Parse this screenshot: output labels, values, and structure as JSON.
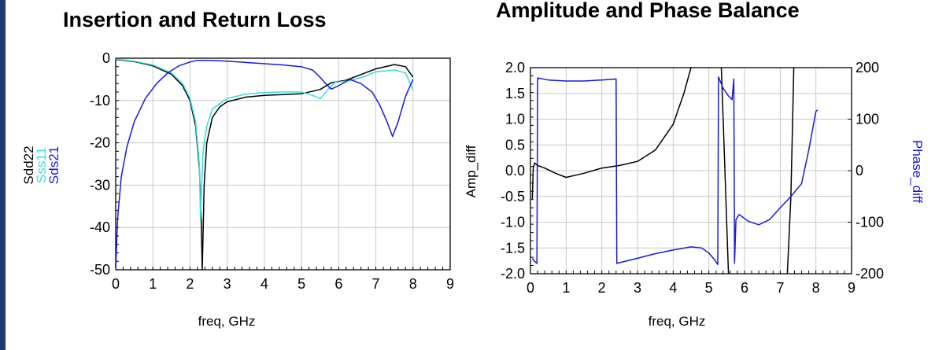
{
  "colors": {
    "black": "#000000",
    "cyan": "#33dddd",
    "blue": "#1a1ad6",
    "grid": "#c8c8c8",
    "frame": "#1f3a6e"
  },
  "chart_data": [
    {
      "type": "line",
      "title": "Insertion and Return Loss",
      "xlabel": "freq, GHz",
      "ylabel_stack": [
        {
          "text": "Sdd22",
          "color": "#000000"
        },
        {
          "text": "Sss11",
          "color": "#33dddd"
        },
        {
          "text": "Sds21",
          "color": "#1a1ad6"
        }
      ],
      "xlim": [
        0,
        9
      ],
      "ylim": [
        -50,
        0
      ],
      "x_ticks": [
        0,
        1,
        2,
        3,
        4,
        5,
        6,
        7,
        8,
        9
      ],
      "y_ticks": [
        0,
        -10,
        -20,
        -30,
        -40,
        -50
      ],
      "x_tick_labels": [
        "0",
        "1",
        "2",
        "3",
        "4",
        "5",
        "6",
        "7",
        "8",
        "9"
      ],
      "y_tick_labels": [
        "0",
        "-10",
        "-20",
        "-30",
        "-40",
        "-50"
      ],
      "grid": true,
      "series": [
        {
          "name": "Sdd22",
          "color": "#000000",
          "points": [
            [
              0,
              -0.3
            ],
            [
              0.5,
              -0.8
            ],
            [
              1.0,
              -1.8
            ],
            [
              1.5,
              -3.8
            ],
            [
              1.8,
              -6.5
            ],
            [
              2.0,
              -10
            ],
            [
              2.15,
              -16
            ],
            [
              2.25,
              -26
            ],
            [
              2.3,
              -38
            ],
            [
              2.33,
              -50
            ],
            [
              2.38,
              -30
            ],
            [
              2.45,
              -20
            ],
            [
              2.6,
              -14
            ],
            [
              2.8,
              -11.5
            ],
            [
              3.0,
              -10.3
            ],
            [
              3.5,
              -9.2
            ],
            [
              4.0,
              -8.8
            ],
            [
              4.5,
              -8.6
            ],
            [
              5.0,
              -8.4
            ],
            [
              5.5,
              -7.4
            ],
            [
              5.8,
              -5.8
            ],
            [
              6.2,
              -5.2
            ],
            [
              6.5,
              -4.2
            ],
            [
              7.0,
              -2.5
            ],
            [
              7.5,
              -1.5
            ],
            [
              7.8,
              -2.0
            ],
            [
              8.0,
              -4.5
            ]
          ]
        },
        {
          "name": "Sss11",
          "color": "#33dddd",
          "points": [
            [
              0,
              -0.2
            ],
            [
              0.5,
              -0.7
            ],
            [
              1.0,
              -1.6
            ],
            [
              1.5,
              -3.5
            ],
            [
              1.8,
              -6.0
            ],
            [
              2.0,
              -9.5
            ],
            [
              2.15,
              -15
            ],
            [
              2.25,
              -25
            ],
            [
              2.28,
              -38
            ],
            [
              2.35,
              -22
            ],
            [
              2.45,
              -16
            ],
            [
              2.6,
              -12
            ],
            [
              3.0,
              -9.5
            ],
            [
              3.5,
              -8.5
            ],
            [
              4.0,
              -8.1
            ],
            [
              4.5,
              -8.0
            ],
            [
              5.0,
              -8.0
            ],
            [
              5.3,
              -8.8
            ],
            [
              5.5,
              -9.6
            ],
            [
              5.7,
              -7.5
            ],
            [
              5.9,
              -5.7
            ],
            [
              6.3,
              -5.3
            ],
            [
              6.7,
              -4.3
            ],
            [
              7.0,
              -3.2
            ],
            [
              7.5,
              -2.8
            ],
            [
              7.8,
              -3.5
            ],
            [
              8.0,
              -7.5
            ]
          ]
        },
        {
          "name": "Sds21",
          "color": "#1a1ad6",
          "points": [
            [
              0,
              -50
            ],
            [
              0.05,
              -38
            ],
            [
              0.15,
              -28
            ],
            [
              0.3,
              -21
            ],
            [
              0.5,
              -15
            ],
            [
              0.8,
              -9.5
            ],
            [
              1.1,
              -6
            ],
            [
              1.4,
              -3.5
            ],
            [
              1.7,
              -1.8
            ],
            [
              2.0,
              -0.9
            ],
            [
              2.2,
              -0.5
            ],
            [
              2.5,
              -0.5
            ],
            [
              3.0,
              -0.7
            ],
            [
              3.5,
              -1.0
            ],
            [
              4.0,
              -1.3
            ],
            [
              4.5,
              -1.6
            ],
            [
              5.0,
              -2.0
            ],
            [
              5.3,
              -2.8
            ],
            [
              5.5,
              -4.5
            ],
            [
              5.65,
              -6.0
            ],
            [
              5.8,
              -7.3
            ],
            [
              6.0,
              -6.5
            ],
            [
              6.3,
              -5.0
            ],
            [
              6.6,
              -6.0
            ],
            [
              6.9,
              -8.0
            ],
            [
              7.1,
              -11
            ],
            [
              7.3,
              -15
            ],
            [
              7.45,
              -18.5
            ],
            [
              7.6,
              -15
            ],
            [
              7.8,
              -9
            ],
            [
              8.0,
              -5.0
            ]
          ]
        }
      ]
    },
    {
      "type": "line",
      "title": "Amplitude and Phase Balance",
      "xlabel": "freq, GHz",
      "ylabel": "Amp_diff",
      "ylabel_right": "Phase_diff",
      "xlim": [
        0,
        9
      ],
      "ylim": [
        -2.0,
        2.0
      ],
      "ylim_right": [
        -200,
        200
      ],
      "x_ticks": [
        0,
        1,
        2,
        3,
        4,
        5,
        6,
        7,
        8,
        9
      ],
      "y_ticks": [
        2.0,
        1.5,
        1.0,
        0.5,
        0.0,
        -0.5,
        -1.0,
        -1.5,
        -2.0
      ],
      "y_ticks_right": [
        200,
        100,
        0,
        -100,
        -200
      ],
      "x_tick_labels": [
        "0",
        "1",
        "2",
        "3",
        "4",
        "5",
        "6",
        "7",
        "8",
        "9"
      ],
      "y_tick_labels": [
        "2.0",
        "1.5",
        "1.0",
        "0.5",
        "0.0",
        "-0.5",
        "-1.0",
        "-1.5",
        "-2.0"
      ],
      "y_tick_labels_right": [
        "200",
        "100",
        "0",
        "-100",
        "-200"
      ],
      "grid": true,
      "series": [
        {
          "name": "Amp_diff",
          "color": "#000000",
          "axis": "left",
          "points": [
            [
              0.05,
              -0.55
            ],
            [
              0.08,
              0.05
            ],
            [
              0.12,
              0.15
            ],
            [
              0.2,
              0.1
            ],
            [
              0.4,
              0.05
            ],
            [
              0.7,
              -0.05
            ],
            [
              1.0,
              -0.13
            ],
            [
              1.5,
              -0.05
            ],
            [
              2.0,
              0.05
            ],
            [
              2.5,
              0.1
            ],
            [
              3.0,
              0.18
            ],
            [
              3.5,
              0.4
            ],
            [
              4.0,
              0.9
            ],
            [
              4.3,
              1.5
            ],
            [
              4.5,
              2.0
            ],
            null,
            [
              5.35,
              2.0
            ],
            [
              5.45,
              0.0
            ],
            [
              5.5,
              -1.0
            ],
            [
              5.55,
              -2.0
            ],
            null,
            [
              7.2,
              -2.0
            ],
            [
              7.3,
              -0.5
            ],
            [
              7.38,
              2.0
            ]
          ]
        },
        {
          "name": "Phase_diff",
          "color": "#1a1ad6",
          "axis": "right",
          "points": [
            [
              0.05,
              -170
            ],
            [
              0.1,
              -175
            ],
            [
              0.15,
              -178
            ],
            [
              0.18,
              -180
            ],
            [
              0.2,
              180
            ],
            [
              0.5,
              176
            ],
            [
              1.0,
              174
            ],
            [
              1.5,
              174
            ],
            [
              2.0,
              176
            ],
            [
              2.4,
              178
            ],
            [
              2.42,
              -180
            ],
            [
              3.0,
              -170
            ],
            [
              3.5,
              -161
            ],
            [
              4.0,
              -154
            ],
            [
              4.5,
              -148
            ],
            [
              4.8,
              -150
            ],
            [
              5.0,
              -160
            ],
            [
              5.15,
              -172
            ],
            [
              5.25,
              -182
            ],
            [
              5.27,
              182
            ],
            [
              5.4,
              160
            ],
            [
              5.55,
              145
            ],
            [
              5.65,
              138
            ],
            [
              5.7,
              178
            ],
            [
              5.72,
              -180
            ],
            [
              5.76,
              -95
            ],
            [
              5.85,
              -85
            ],
            [
              6.1,
              -98
            ],
            [
              6.4,
              -105
            ],
            [
              6.7,
              -95
            ],
            [
              7.0,
              -72
            ],
            [
              7.3,
              -50
            ],
            [
              7.6,
              -25
            ],
            [
              7.8,
              40
            ],
            [
              8.0,
              115
            ],
            [
              8.05,
              118
            ]
          ]
        }
      ]
    }
  ]
}
